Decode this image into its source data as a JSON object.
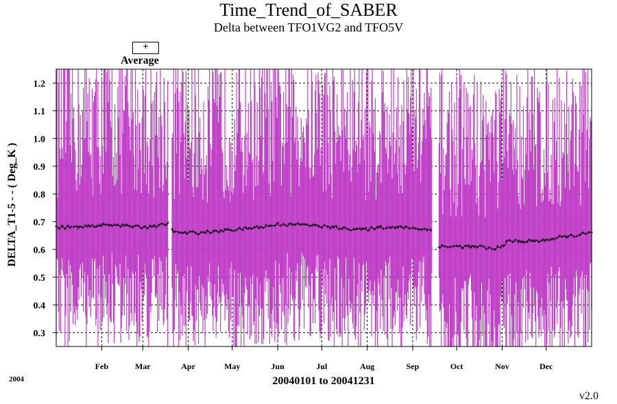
{
  "chart_data": {
    "type": "line",
    "title": "Time_Trend_of_SABER",
    "subtitle": "Delta between TFO1VG2 and TFO5V",
    "legend": {
      "symbol": "+",
      "label": "Average",
      "position": "top-left"
    },
    "ylabel": "DELTA_T1-5  - - ( Deg_K )",
    "xlabel": "20040101 to 20041231",
    "year_label": "2004",
    "version": "v2.0",
    "ylim": [
      0.25,
      1.25
    ],
    "yticks": [
      "0.3",
      "0.4",
      "0.5",
      "0.6",
      "0.7",
      "0.8",
      "0.9",
      "1.0",
      "1.1",
      "1.2"
    ],
    "ytick_values": [
      0.3,
      0.4,
      0.5,
      0.6,
      0.7,
      0.8,
      0.9,
      1.0,
      1.1,
      1.2
    ],
    "xlim": [
      1,
      366
    ],
    "xticks": [
      "Feb",
      "Mar",
      "Apr",
      "May",
      "Jun",
      "Jul",
      "Aug",
      "Sep",
      "Oct",
      "Nov",
      "Dec"
    ],
    "xtick_days": [
      32,
      60,
      91,
      121,
      152,
      182,
      213,
      244,
      274,
      305,
      335
    ],
    "grid": true,
    "range_color": "#c040c8",
    "average_color": "#000000",
    "gaps": [
      [
        77,
        80
      ],
      [
        257,
        262
      ]
    ],
    "series": [
      {
        "name": "Average",
        "x": [
          1,
          20,
          40,
          60,
          77,
          82,
          100,
          120,
          140,
          152,
          170,
          190,
          210,
          220,
          240,
          257,
          262,
          270,
          290,
          300,
          310,
          330,
          340,
          355,
          366
        ],
        "values": [
          0.68,
          0.68,
          0.69,
          0.68,
          0.69,
          0.66,
          0.66,
          0.67,
          0.68,
          0.69,
          0.69,
          0.68,
          0.67,
          0.68,
          0.68,
          0.67,
          0.61,
          0.61,
          0.61,
          0.6,
          0.63,
          0.63,
          0.64,
          0.65,
          0.66
        ]
      }
    ]
  },
  "ui": {
    "title": "Time_Trend_of_SABER",
    "subtitle": "Delta between TFO1VG2 and TFO5V",
    "legend_symbol": "+",
    "legend_label": "Average",
    "ylabel": "DELTA_T1-5  - - ( Deg_K )",
    "xlabel": "20040101 to 20041231",
    "year": "2004",
    "version": "v2.0"
  }
}
